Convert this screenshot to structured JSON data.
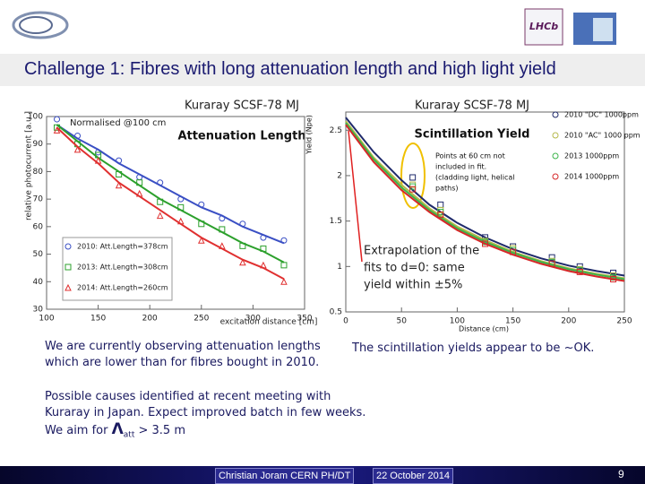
{
  "slide": {
    "title": "Challenge 1: Fibres with long attenuation length and high light yield",
    "logo_text": "LHCb",
    "left_text": [
      "We are currently observing attenuation lengths",
      "which are lower than for fibres bought in 2010."
    ],
    "right_text": "The scintillation yields appear to be ~OK.",
    "bottom_text": [
      "Possible causes identified at recent meeting with",
      "Kuraray in Japan. Expect improved batch in few weeks."
    ],
    "aim": {
      "start": "We aim for ",
      "symbol": "Λ",
      "sub": "att",
      "end": " > 3.5 m"
    },
    "footer": {
      "author": "Christian Joram  CERN  PH/DT",
      "date": "22 October 2014",
      "page": "9"
    }
  },
  "chart_data": [
    {
      "type": "scatter",
      "title": "Kuraray SCSF-78 MJ",
      "subtitle": "Attenuation Length",
      "note": "Normalised @100 cm",
      "xlabel": "excitation distance [cm]",
      "ylabel": "relative photocurrent [a.u.]",
      "xlim": [
        100,
        350
      ],
      "ylim": [
        30,
        100
      ],
      "xticks": [
        100,
        150,
        200,
        250,
        300,
        350
      ],
      "yticks": [
        30,
        40,
        50,
        60,
        70,
        80,
        90,
        100
      ],
      "legend": "lower left",
      "x": [
        110,
        130,
        150,
        170,
        190,
        210,
        230,
        250,
        270,
        290,
        310,
        330
      ],
      "series": [
        {
          "name": "2010: Att.Length=378cm",
          "color": "#3a4fc4",
          "marker": "circle",
          "values": [
            99,
            93,
            87,
            84,
            78,
            76,
            70,
            68,
            63,
            61,
            56,
            55
          ],
          "fit": [
            97,
            92,
            88,
            83,
            79,
            75,
            71,
            67,
            64,
            60,
            57,
            54
          ]
        },
        {
          "name": "2013: Att.Length=308cm",
          "color": "#2ca02c",
          "marker": "square",
          "values": [
            96,
            90,
            86,
            79,
            76,
            69,
            67,
            61,
            59,
            53,
            52,
            46
          ],
          "fit": [
            97,
            91,
            85,
            80,
            75,
            70,
            66,
            62,
            58,
            54,
            51,
            47
          ]
        },
        {
          "name": "2014: Att.Length=260cm",
          "color": "#e03030",
          "marker": "triangle",
          "values": [
            95,
            88,
            84,
            75,
            72,
            64,
            62,
            55,
            53,
            47,
            46,
            40
          ],
          "fit": [
            96,
            89,
            83,
            76,
            71,
            66,
            61,
            56,
            52,
            48,
            45,
            41
          ]
        }
      ]
    },
    {
      "type": "scatter",
      "title": "Kuraray SCSF-78 MJ",
      "subtitle": "Scintillation Yield",
      "xlabel": "Distance (cm)",
      "ylabel": "Yield   (Npe)",
      "note": [
        "Points at 60 cm not",
        "included in fit.",
        "(cladding light, helical",
        "paths)"
      ],
      "annotation": [
        "Extrapolation of the",
        "fits to d=0: same",
        "yield within ±5%"
      ],
      "xlim": [
        0,
        250
      ],
      "ylim": [
        0.5,
        2.7
      ],
      "xticks": [
        0,
        50,
        100,
        150,
        200,
        250
      ],
      "yticks": [
        0.5,
        1,
        1.5,
        2,
        2.5
      ],
      "legend": "upper right",
      "x": [
        60,
        85,
        125,
        150,
        185,
        210,
        240
      ],
      "fit_x": [
        0,
        25,
        50,
        75,
        100,
        125,
        150,
        175,
        200,
        225,
        250
      ],
      "series": [
        {
          "name": "2010 \"DC\" 1000ppm",
          "color": "#1f2a6b",
          "marker": "square",
          "values": [
            1.98,
            1.68,
            1.32,
            1.22,
            1.1,
            1.0,
            0.93
          ],
          "fit": [
            2.64,
            2.26,
            1.95,
            1.68,
            1.48,
            1.32,
            1.19,
            1.09,
            1.01,
            0.95,
            0.9
          ]
        },
        {
          "name": "2010 \"AC\" 1000 ppm",
          "color": "#b5b84a",
          "marker": "square",
          "values": [
            1.9,
            1.62,
            1.28,
            1.2,
            1.06,
            0.97,
            0.9
          ],
          "fit": [
            2.6,
            2.2,
            1.9,
            1.64,
            1.44,
            1.29,
            1.16,
            1.06,
            0.98,
            0.92,
            0.87
          ]
        },
        {
          "name": "2013 1000ppm",
          "color": "#3cb44b",
          "marker": "square",
          "values": [
            1.88,
            1.6,
            1.27,
            1.18,
            1.05,
            0.96,
            0.88
          ],
          "fit": [
            2.58,
            2.18,
            1.87,
            1.62,
            1.42,
            1.27,
            1.15,
            1.05,
            0.97,
            0.91,
            0.86
          ]
        },
        {
          "name": "2014 1000ppm",
          "color": "#d62728",
          "marker": "square",
          "values": [
            1.85,
            1.57,
            1.25,
            1.16,
            1.03,
            0.94,
            0.86
          ],
          "fit": [
            2.56,
            2.15,
            1.84,
            1.6,
            1.4,
            1.25,
            1.13,
            1.03,
            0.95,
            0.89,
            0.84
          ]
        }
      ]
    }
  ]
}
